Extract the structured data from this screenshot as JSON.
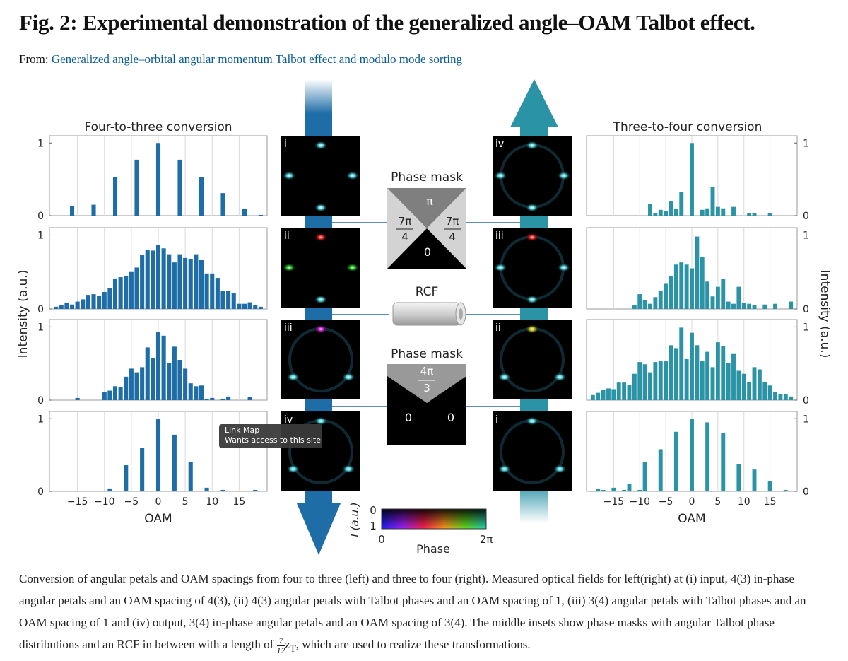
{
  "header": {
    "title": "Fig. 2: Experimental demonstration of the generalized angle–OAM Talbot effect.",
    "from_label": "From:",
    "link": "Generalized angle–orbital angular momentum Talbot effect and modulo mode sorting"
  },
  "figure": {
    "ylabel_left": "Intensity (a.u.)",
    "ylabel_right": "Intensity (a.u.)",
    "left_panels": [
      "i",
      "ii",
      "iii",
      "iv"
    ],
    "right_panels": [
      "iv",
      "iii",
      "ii",
      "i"
    ],
    "mask1": {
      "title": "Phase mask",
      "top": "π",
      "left": {
        "num": "7π",
        "den": "4"
      },
      "right": {
        "num": "7π",
        "den": "4"
      },
      "bottom": "0"
    },
    "rcf": "RCF",
    "mask2": {
      "title": "Phase mask",
      "top": {
        "num": "4π",
        "den": "3"
      },
      "left": "0",
      "right": "0"
    },
    "colorbar": {
      "i_label": "I (a.u.)",
      "i_top": "0",
      "i_bottom": "1",
      "phase_start": "0",
      "phase_end": "2π",
      "phase_label": "Phase"
    },
    "tooltip": {
      "title": "Link Map",
      "text": "Wants access to this site"
    }
  },
  "chart_data": [
    {
      "type": "bar",
      "title": "Four-to-three conversion",
      "color": "#1f6da6",
      "yaxis_side": "left",
      "xtick_labels": false,
      "xlim": [
        -20.2,
        20.2
      ],
      "ylim": [
        0,
        1.1
      ],
      "yticks": [
        0,
        1
      ],
      "xticks": [
        {
          "value": -15,
          "label": "−15"
        },
        {
          "value": -10,
          "label": "−10"
        },
        {
          "value": -5,
          "label": "−5"
        },
        0,
        5,
        10,
        15
      ],
      "x": [
        -16,
        -12,
        -8,
        -4,
        0,
        4,
        8,
        12,
        16,
        19
      ],
      "values": [
        0.13,
        0.15,
        0.53,
        0.77,
        1.0,
        0.77,
        0.53,
        0.31,
        0.09,
        0.01
      ]
    },
    {
      "type": "bar",
      "color": "#1f6da6",
      "yaxis_side": "left",
      "xtick_labels": false,
      "xlim": [
        -20.2,
        20.2
      ],
      "ylim": [
        0,
        1.1
      ],
      "yticks": [
        0,
        1
      ],
      "xticks": [
        {
          "value": -15,
          "label": "−15"
        },
        {
          "value": -10,
          "label": "−10"
        },
        {
          "value": -5,
          "label": "−5"
        },
        0,
        5,
        10,
        15
      ],
      "x": [
        -19,
        -18,
        -17,
        -16,
        -15,
        -14,
        -13,
        -12,
        -11,
        -10,
        -9,
        -8,
        -7,
        -6,
        -5,
        -4,
        -3,
        -2,
        -1,
        0,
        1,
        2,
        3,
        4,
        5,
        6,
        7,
        8,
        9,
        10,
        11,
        12,
        13,
        14,
        15,
        16,
        17,
        18,
        19
      ],
      "values": [
        0.03,
        0.05,
        0.08,
        0.06,
        0.1,
        0.13,
        0.19,
        0.2,
        0.18,
        0.23,
        0.28,
        0.41,
        0.43,
        0.44,
        0.5,
        0.56,
        0.73,
        0.8,
        0.79,
        0.87,
        0.82,
        0.74,
        0.63,
        0.74,
        0.69,
        0.68,
        0.74,
        0.66,
        0.48,
        0.48,
        0.42,
        0.24,
        0.24,
        0.21,
        0.07,
        0.07,
        0.09,
        0.05,
        0.03
      ]
    },
    {
      "type": "bar",
      "color": "#1f6da6",
      "yaxis_side": "left",
      "xtick_labels": false,
      "xlim": [
        -20.2,
        20.2
      ],
      "ylim": [
        0,
        1.1
      ],
      "yticks": [
        0,
        1
      ],
      "xticks": [
        {
          "value": -15,
          "label": "−15"
        },
        {
          "value": -10,
          "label": "−10"
        },
        {
          "value": -5,
          "label": "−5"
        },
        0,
        5,
        10,
        15
      ],
      "x": [
        -15,
        -10,
        -9,
        -8,
        -7,
        -6,
        -5,
        -4,
        -3,
        -2,
        -1,
        0,
        1,
        2,
        3,
        4,
        5,
        6,
        7,
        8,
        9,
        10,
        12,
        13,
        17
      ],
      "values": [
        0.03,
        0.11,
        0.13,
        0.19,
        0.18,
        0.32,
        0.43,
        0.38,
        0.45,
        0.72,
        0.57,
        0.93,
        0.88,
        0.51,
        0.73,
        0.55,
        0.43,
        0.23,
        0.19,
        0.2,
        0.02,
        0.03,
        0.02,
        0.05,
        0.04
      ]
    },
    {
      "type": "bar",
      "color": "#1f6da6",
      "yaxis_side": "left",
      "xtick_labels": true,
      "xlabel": "OAM",
      "xlim": [
        -20.2,
        20.2
      ],
      "ylim": [
        0,
        1.1
      ],
      "yticks": [
        0,
        1
      ],
      "xticks": [
        {
          "value": -15,
          "label": "−15"
        },
        {
          "value": -10,
          "label": "−10"
        },
        {
          "value": -5,
          "label": "−5"
        },
        0,
        5,
        10,
        15
      ],
      "x": [
        -9,
        -6,
        -3,
        0,
        3,
        6,
        9,
        12,
        18
      ],
      "values": [
        0.04,
        0.36,
        0.6,
        1.0,
        0.78,
        0.4,
        0.05,
        0.02,
        0.02
      ]
    },
    {
      "type": "bar",
      "title": "Three-to-four conversion",
      "color": "#2b93a6",
      "yaxis_side": "right",
      "xtick_labels": false,
      "xlim": [
        -20.2,
        20.2
      ],
      "ylim": [
        0,
        1.1
      ],
      "yticks": [
        0,
        1
      ],
      "xticks": [
        {
          "value": -15,
          "label": "−15"
        },
        {
          "value": -10,
          "label": "−10"
        },
        {
          "value": -5,
          "label": "−5"
        },
        0,
        5,
        10,
        15
      ],
      "x": [
        -8,
        -7,
        -6,
        -5,
        -4,
        -3,
        -2,
        0,
        2,
        3,
        4,
        5,
        6,
        8,
        11,
        12,
        15
      ],
      "values": [
        0.16,
        0.03,
        0.08,
        0.06,
        0.2,
        0.09,
        0.33,
        1.0,
        0.08,
        0.1,
        0.39,
        0.12,
        0.1,
        0.12,
        0.03,
        0.03,
        0.03
      ]
    },
    {
      "type": "bar",
      "color": "#2b93a6",
      "yaxis_side": "right",
      "xtick_labels": false,
      "xlim": [
        -20.2,
        20.2
      ],
      "ylim": [
        0,
        1.1
      ],
      "yticks": [
        0,
        1
      ],
      "xticks": [
        {
          "value": -15,
          "label": "−15"
        },
        {
          "value": -10,
          "label": "−10"
        },
        {
          "value": -5,
          "label": "−5"
        },
        0,
        5,
        10,
        15
      ],
      "x": [
        -11,
        -10,
        -9,
        -8,
        -7,
        -6,
        -5,
        -4,
        -3,
        -2,
        -1,
        0,
        1,
        2,
        3,
        4,
        5,
        6,
        7,
        8,
        9,
        10,
        11,
        12,
        14,
        16,
        19
      ],
      "values": [
        0.05,
        0.2,
        0.12,
        0.07,
        0.16,
        0.25,
        0.34,
        0.45,
        0.6,
        0.63,
        0.6,
        0.55,
        0.98,
        0.7,
        0.37,
        0.17,
        0.3,
        0.41,
        0.1,
        0.07,
        0.3,
        0.08,
        0.07,
        0.05,
        0.06,
        0.07,
        0.1
      ]
    },
    {
      "type": "bar",
      "color": "#2b93a6",
      "yaxis_side": "right",
      "xtick_labels": false,
      "xlim": [
        -20.2,
        20.2
      ],
      "ylim": [
        0,
        1.1
      ],
      "yticks": [
        0,
        1
      ],
      "xticks": [
        {
          "value": -15,
          "label": "−15"
        },
        {
          "value": -10,
          "label": "−10"
        },
        {
          "value": -5,
          "label": "−5"
        },
        0,
        5,
        10,
        15
      ],
      "x": [
        -19,
        -18,
        -17,
        -16,
        -15,
        -14,
        -13,
        -12,
        -11,
        -10,
        -9,
        -8,
        -7,
        -6,
        -5,
        -4,
        -3,
        -2,
        -1,
        0,
        1,
        2,
        3,
        4,
        5,
        6,
        7,
        8,
        9,
        10,
        11,
        12,
        13,
        14,
        15,
        16,
        17,
        18,
        19
      ],
      "values": [
        0.07,
        0.1,
        0.14,
        0.16,
        0.15,
        0.24,
        0.24,
        0.21,
        0.36,
        0.52,
        0.49,
        0.38,
        0.52,
        0.54,
        0.53,
        0.75,
        0.71,
        0.99,
        0.56,
        0.92,
        0.75,
        0.54,
        0.66,
        0.45,
        0.79,
        0.74,
        0.51,
        0.63,
        0.4,
        0.36,
        0.25,
        0.45,
        0.42,
        0.25,
        0.2,
        0.11,
        0.08,
        0.08,
        0.05
      ]
    },
    {
      "type": "bar",
      "color": "#2b93a6",
      "yaxis_side": "right",
      "xtick_labels": true,
      "xlabel": "OAM",
      "xlim": [
        -20.2,
        20.2
      ],
      "ylim": [
        0,
        1.1
      ],
      "yticks": [
        0,
        1
      ],
      "xticks": [
        {
          "value": -15,
          "label": "−15"
        },
        {
          "value": -10,
          "label": "−10"
        },
        {
          "value": -5,
          "label": "−5"
        },
        0,
        5,
        10,
        15
      ],
      "x": [
        -18,
        -17,
        -15,
        -13,
        -12,
        -10,
        -9,
        -6,
        -3,
        0,
        3,
        6,
        9,
        12,
        15,
        18
      ],
      "values": [
        0.04,
        0.02,
        0.05,
        0.02,
        0.1,
        0.02,
        0.4,
        0.58,
        0.82,
        1.0,
        0.95,
        0.8,
        0.37,
        0.3,
        0.14,
        0.02
      ]
    }
  ],
  "caption": {
    "text": "Conversion of angular petals and OAM spacings from four to three (left) and three to four (right). Measured optical fields for left(right) at (i) input, 4(3) in-phase angular petals and an OAM spacing of 4(3), (ii) 4(3) angular petals with Talbot phases and an OAM spacing of 1, (iii) 3(4) angular petals with Talbot phases and an OAM spacing of 1 and (iv) output, 3(4) in-phase angular petals and an OAM spacing of 3(4). The middle insets show phase masks with angular Talbot phase distributions and an RCF in between with a length of",
    "frac_num": "7",
    "frac_den": "12",
    "z": "z",
    "z_sub": "T",
    "after": ", which are used to realize these transformations."
  }
}
